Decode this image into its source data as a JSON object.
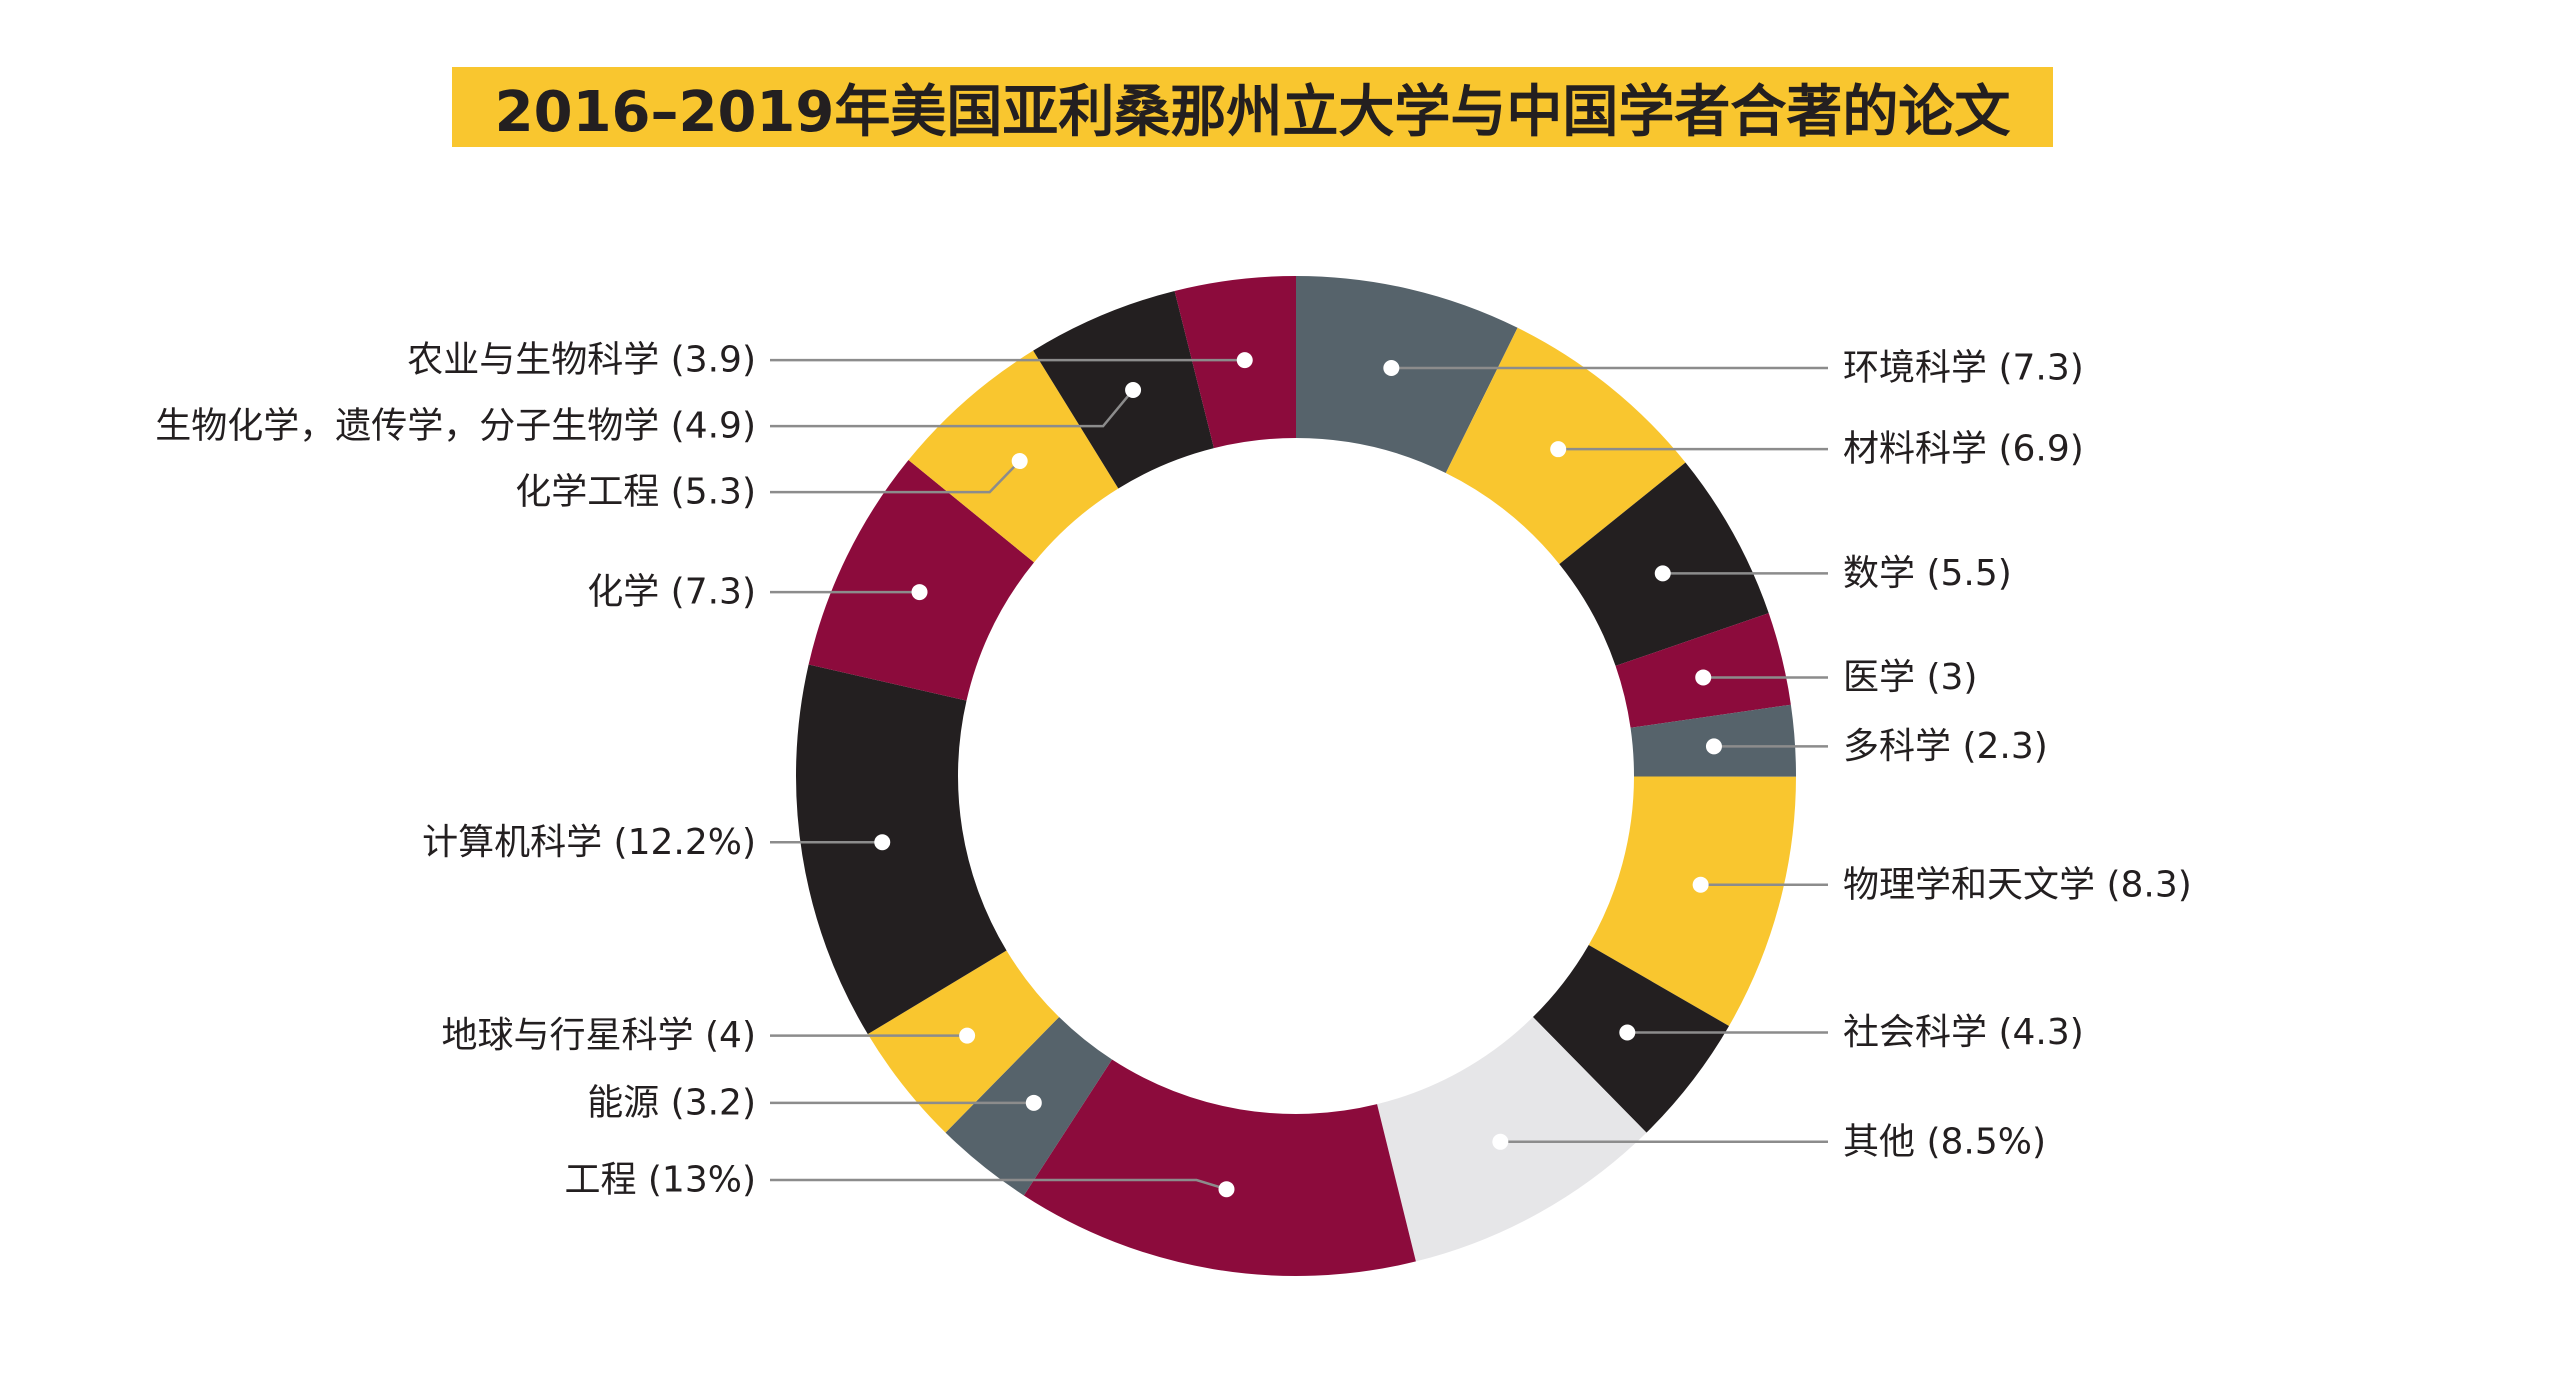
{
  "chart_data": {
    "type": "pie",
    "style": "donut",
    "title": "2016–2019年美国亚利桑那州立大学与中国学者合著的论文",
    "colors": {
      "title_bg": "#f9c62f",
      "title_text": "#231f20",
      "label_text": "#231f20",
      "leader_line": "#8c8c8c",
      "marker": "#ffffff"
    },
    "slices": [
      {
        "label": "环境科学 (7.3)",
        "value": 7.3,
        "color": "#56636b",
        "side": "right"
      },
      {
        "label": "材料科学 (6.9)",
        "value": 6.9,
        "color": "#f9c62f",
        "side": "right"
      },
      {
        "label": "数学 (5.5)",
        "value": 5.5,
        "color": "#231f20",
        "side": "right"
      },
      {
        "label": "医学 (3)",
        "value": 3,
        "color": "#8c0b3c",
        "side": "right"
      },
      {
        "label": "多科学 (2.3)",
        "value": 2.3,
        "color": "#56636b",
        "side": "right"
      },
      {
        "label": "物理学和天文学 (8.3)",
        "value": 8.3,
        "color": "#f9c62f",
        "side": "right"
      },
      {
        "label": "社会科学 (4.3)",
        "value": 4.3,
        "color": "#231f20",
        "side": "right"
      },
      {
        "label": "其他 (8.5%)",
        "value": 8.5,
        "color": "#e6e6e8",
        "side": "right"
      },
      {
        "label": "工程 (13%)",
        "value": 13,
        "color": "#8c0b3c",
        "side": "left"
      },
      {
        "label": "能源 (3.2)",
        "value": 3.2,
        "color": "#56636b",
        "side": "left"
      },
      {
        "label": "地球与行星科学 (4)",
        "value": 4,
        "color": "#f9c62f",
        "side": "left"
      },
      {
        "label": "计算机科学 (12.2%)",
        "value": 12.2,
        "color": "#231f20",
        "side": "left"
      },
      {
        "label": "化学 (7.3)",
        "value": 7.3,
        "color": "#8c0b3c",
        "side": "left"
      },
      {
        "label": "化学工程 (5.3)",
        "value": 5.3,
        "color": "#f9c62f",
        "side": "left"
      },
      {
        "label": "生物化学，遗传学，分子生物学 (4.9)",
        "value": 4.9,
        "color": "#231f20",
        "side": "left"
      },
      {
        "label": "农业与生物科学 (3.9)",
        "value": 3.9,
        "color": "#8c0b3c",
        "side": "left"
      }
    ]
  }
}
